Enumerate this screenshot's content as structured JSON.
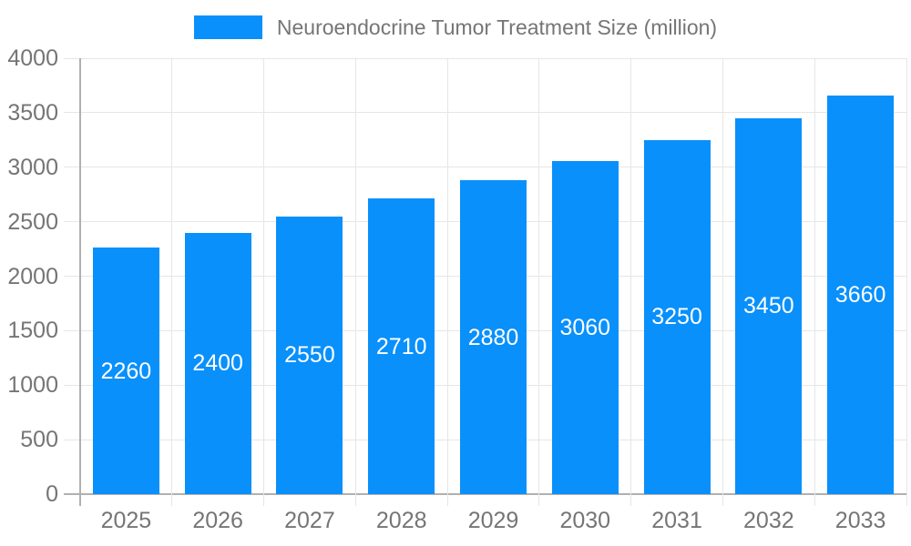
{
  "chart_data": {
    "type": "bar",
    "title": "Neuroendocrine Tumor Treatment Size (million)",
    "series_name": "Neuroendocrine Tumor Treatment Size (million)",
    "categories": [
      "2025",
      "2026",
      "2027",
      "2028",
      "2029",
      "2030",
      "2031",
      "2032",
      "2033"
    ],
    "values": [
      2260,
      2400,
      2550,
      2710,
      2880,
      3060,
      3250,
      3450,
      3660
    ],
    "value_labels": [
      "2260",
      "2400",
      "2550",
      "2710",
      "2880",
      "3060",
      "3250",
      "3450",
      "3660"
    ],
    "xlabel": "",
    "ylabel": "",
    "ylim": [
      0,
      4000
    ],
    "yticks": [
      0,
      500,
      1000,
      1500,
      2000,
      2500,
      3000,
      3500,
      4000
    ],
    "grid": true,
    "legend_position": "top",
    "bar_color": "#0990fb",
    "value_label_color": "#ffffff",
    "axis_text_color": "#757575",
    "gridline_color": "#e6e6e6",
    "axis_line_color": "#b0b0b0",
    "background_color": "#ffffff"
  }
}
